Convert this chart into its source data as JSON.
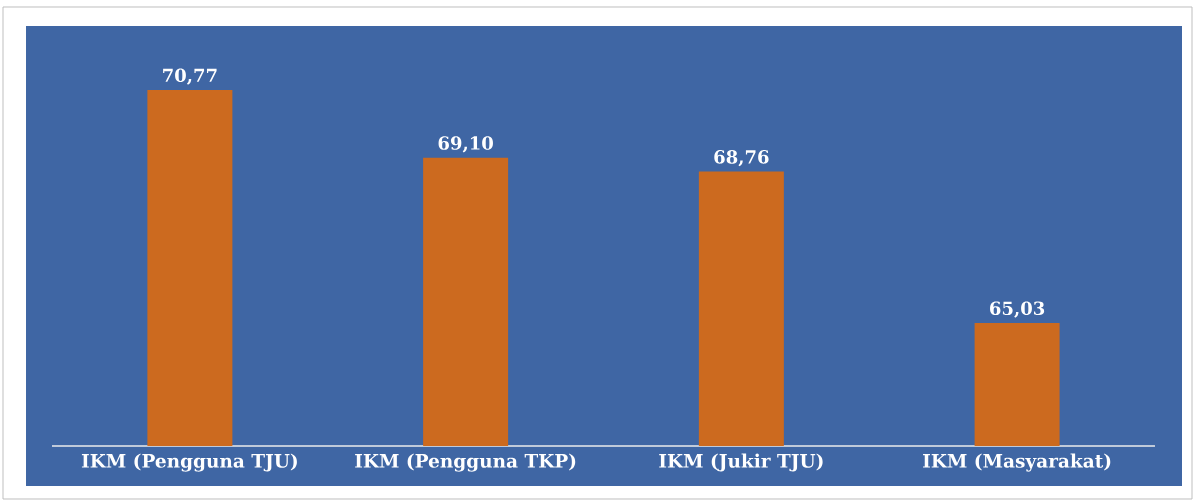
{
  "chart_data": {
    "type": "bar",
    "categories": [
      "IKM (Pengguna TJU)",
      "IKM (Pengguna TKP)",
      "IKM (Jukir TJU)",
      "IKM (Masyarakat)"
    ],
    "values": [
      70.77,
      69.1,
      68.76,
      65.03
    ],
    "value_labels": [
      "70,77",
      "69,10",
      "68,76",
      "65,03"
    ],
    "color": "#cc6a1f",
    "ylim": [
      62,
      70.77
    ],
    "tick_labels": "x"
  }
}
